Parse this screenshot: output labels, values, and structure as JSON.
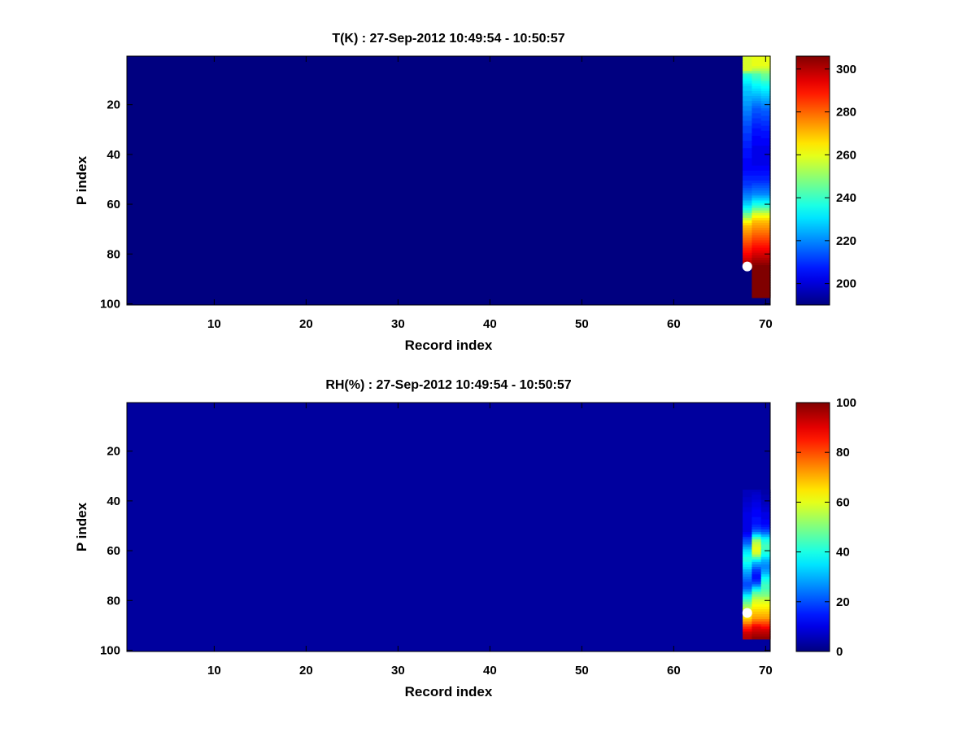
{
  "figure": {
    "background": "#ffffff"
  },
  "chart_data": [
    {
      "type": "heatmap",
      "title": "T(K) : 27-Sep-2012 10:49:54 - 10:50:57",
      "xlabel": "Record index",
      "ylabel": "P index",
      "xlim": [
        0.5,
        70.5
      ],
      "ylim": [
        0.5,
        100.5
      ],
      "y_reversed": true,
      "x_ticks": [
        10,
        20,
        30,
        40,
        50,
        60,
        70
      ],
      "y_ticks": [
        20,
        40,
        60,
        80,
        100
      ],
      "colormap": "jet",
      "background_value": 190,
      "clim": [
        190,
        306
      ],
      "colorbar": {
        "ticks": [
          200,
          220,
          240,
          260,
          280,
          300
        ]
      },
      "data_columns": [
        {
          "x": 68,
          "y_start": 1,
          "values": [
            258,
            258,
            258,
            258,
            258,
            258,
            248,
            238,
            236,
            234,
            232,
            230,
            228,
            228,
            226,
            226,
            224,
            224,
            222,
            222,
            220,
            220,
            218,
            218,
            216,
            216,
            214,
            214,
            212,
            212,
            212,
            210,
            210,
            210,
            208,
            208,
            208,
            206,
            206,
            206,
            206,
            204,
            204,
            204,
            204,
            204,
            206,
            206,
            208,
            208,
            210,
            210,
            212,
            214,
            216,
            218,
            220,
            222,
            226,
            228,
            232,
            236,
            240,
            246,
            250,
            256,
            262,
            266,
            270,
            272,
            274,
            276,
            278,
            280,
            282,
            284,
            286,
            288,
            290,
            292,
            294,
            296,
            298,
            300,
            302
          ]
        },
        {
          "x": 69,
          "y_start": 1,
          "values": [
            260,
            260,
            260,
            260,
            258,
            254,
            248,
            242,
            240,
            238,
            236,
            234,
            232,
            230,
            228,
            226,
            224,
            222,
            220,
            218,
            216,
            214,
            214,
            212,
            212,
            210,
            210,
            208,
            208,
            206,
            206,
            206,
            204,
            204,
            204,
            204,
            202,
            202,
            202,
            202,
            202,
            202,
            202,
            202,
            204,
            204,
            206,
            206,
            208,
            208,
            210,
            212,
            214,
            216,
            218,
            220,
            224,
            228,
            232,
            236,
            240,
            246,
            252,
            258,
            262,
            266,
            270,
            272,
            274,
            276,
            278,
            280,
            282,
            284,
            286,
            288,
            290,
            292,
            294,
            296,
            298,
            300,
            302,
            304,
            306,
            306,
            306,
            306,
            306,
            306,
            306,
            306,
            306,
            306,
            306,
            306,
            306
          ]
        },
        {
          "x": 70,
          "y_start": 1,
          "values": [
            260,
            260,
            260,
            260,
            258,
            254,
            250,
            246,
            244,
            242,
            238,
            236,
            234,
            232,
            230,
            228,
            226,
            224,
            222,
            220,
            218,
            216,
            214,
            214,
            212,
            212,
            210,
            210,
            208,
            208,
            206,
            206,
            206,
            204,
            204,
            204,
            202,
            202,
            202,
            202,
            202,
            202,
            202,
            202,
            204,
            204,
            206,
            206,
            208,
            208,
            210,
            212,
            214,
            216,
            218,
            220,
            224,
            228,
            232,
            236,
            240,
            246,
            252,
            258,
            262,
            266,
            270,
            272,
            274,
            276,
            278,
            280,
            282,
            284,
            286,
            288,
            290,
            292,
            294,
            296,
            298,
            300,
            302,
            304,
            306,
            306,
            306,
            306,
            306,
            306,
            306,
            306,
            306,
            306,
            306,
            306,
            306
          ]
        }
      ],
      "markers": [
        {
          "x": 68,
          "y": 85,
          "color": "#ffffff"
        }
      ]
    },
    {
      "type": "heatmap",
      "title": "RH(%) : 27-Sep-2012 10:49:54 - 10:50:57",
      "xlabel": "Record index",
      "ylabel": "P index",
      "xlim": [
        0.5,
        70.5
      ],
      "ylim": [
        0.5,
        100.5
      ],
      "y_reversed": true,
      "x_ticks": [
        10,
        20,
        30,
        40,
        50,
        60,
        70
      ],
      "y_ticks": [
        20,
        40,
        60,
        80,
        100
      ],
      "colormap": "jet",
      "background_value": 3,
      "clim": [
        0,
        100
      ],
      "colorbar": {
        "ticks": [
          0,
          20,
          40,
          60,
          80,
          100
        ]
      },
      "data_columns": [
        {
          "x": 68,
          "y_start": 36,
          "values": [
            6,
            6,
            6,
            7,
            7,
            8,
            8,
            9,
            9,
            10,
            10,
            10,
            10,
            10,
            10,
            10,
            10,
            12,
            14,
            18,
            20,
            22,
            26,
            30,
            34,
            36,
            38,
            40,
            40,
            38,
            36,
            34,
            30,
            28,
            26,
            24,
            22,
            20,
            20,
            22,
            26,
            30,
            36,
            40,
            44,
            48,
            52,
            56,
            60,
            62,
            64,
            66,
            70,
            74,
            80,
            84,
            88,
            92,
            94,
            95
          ]
        },
        {
          "x": 69,
          "y_start": 36,
          "values": [
            6,
            7,
            8,
            8,
            9,
            10,
            10,
            11,
            12,
            12,
            12,
            14,
            14,
            14,
            16,
            18,
            22,
            28,
            36,
            44,
            52,
            56,
            58,
            60,
            60,
            58,
            52,
            44,
            36,
            30,
            26,
            22,
            18,
            16,
            14,
            14,
            16,
            20,
            26,
            34,
            40,
            46,
            50,
            54,
            58,
            60,
            62,
            64,
            66,
            68,
            70,
            72,
            76,
            80,
            86,
            90,
            92,
            94,
            96,
            98
          ]
        },
        {
          "x": 70,
          "y_start": 36,
          "values": [
            4,
            4,
            5,
            5,
            6,
            6,
            7,
            8,
            8,
            10,
            10,
            10,
            12,
            12,
            14,
            16,
            20,
            24,
            30,
            36,
            40,
            42,
            44,
            44,
            42,
            40,
            38,
            34,
            30,
            28,
            26,
            26,
            28,
            30,
            34,
            38,
            40,
            42,
            44,
            44,
            46,
            48,
            50,
            54,
            58,
            60,
            62,
            64,
            66,
            68,
            70,
            72,
            76,
            80,
            84,
            88,
            92,
            94,
            96,
            98
          ]
        }
      ],
      "markers": [
        {
          "x": 68,
          "y": 85,
          "color": "#ffffff"
        }
      ]
    }
  ]
}
